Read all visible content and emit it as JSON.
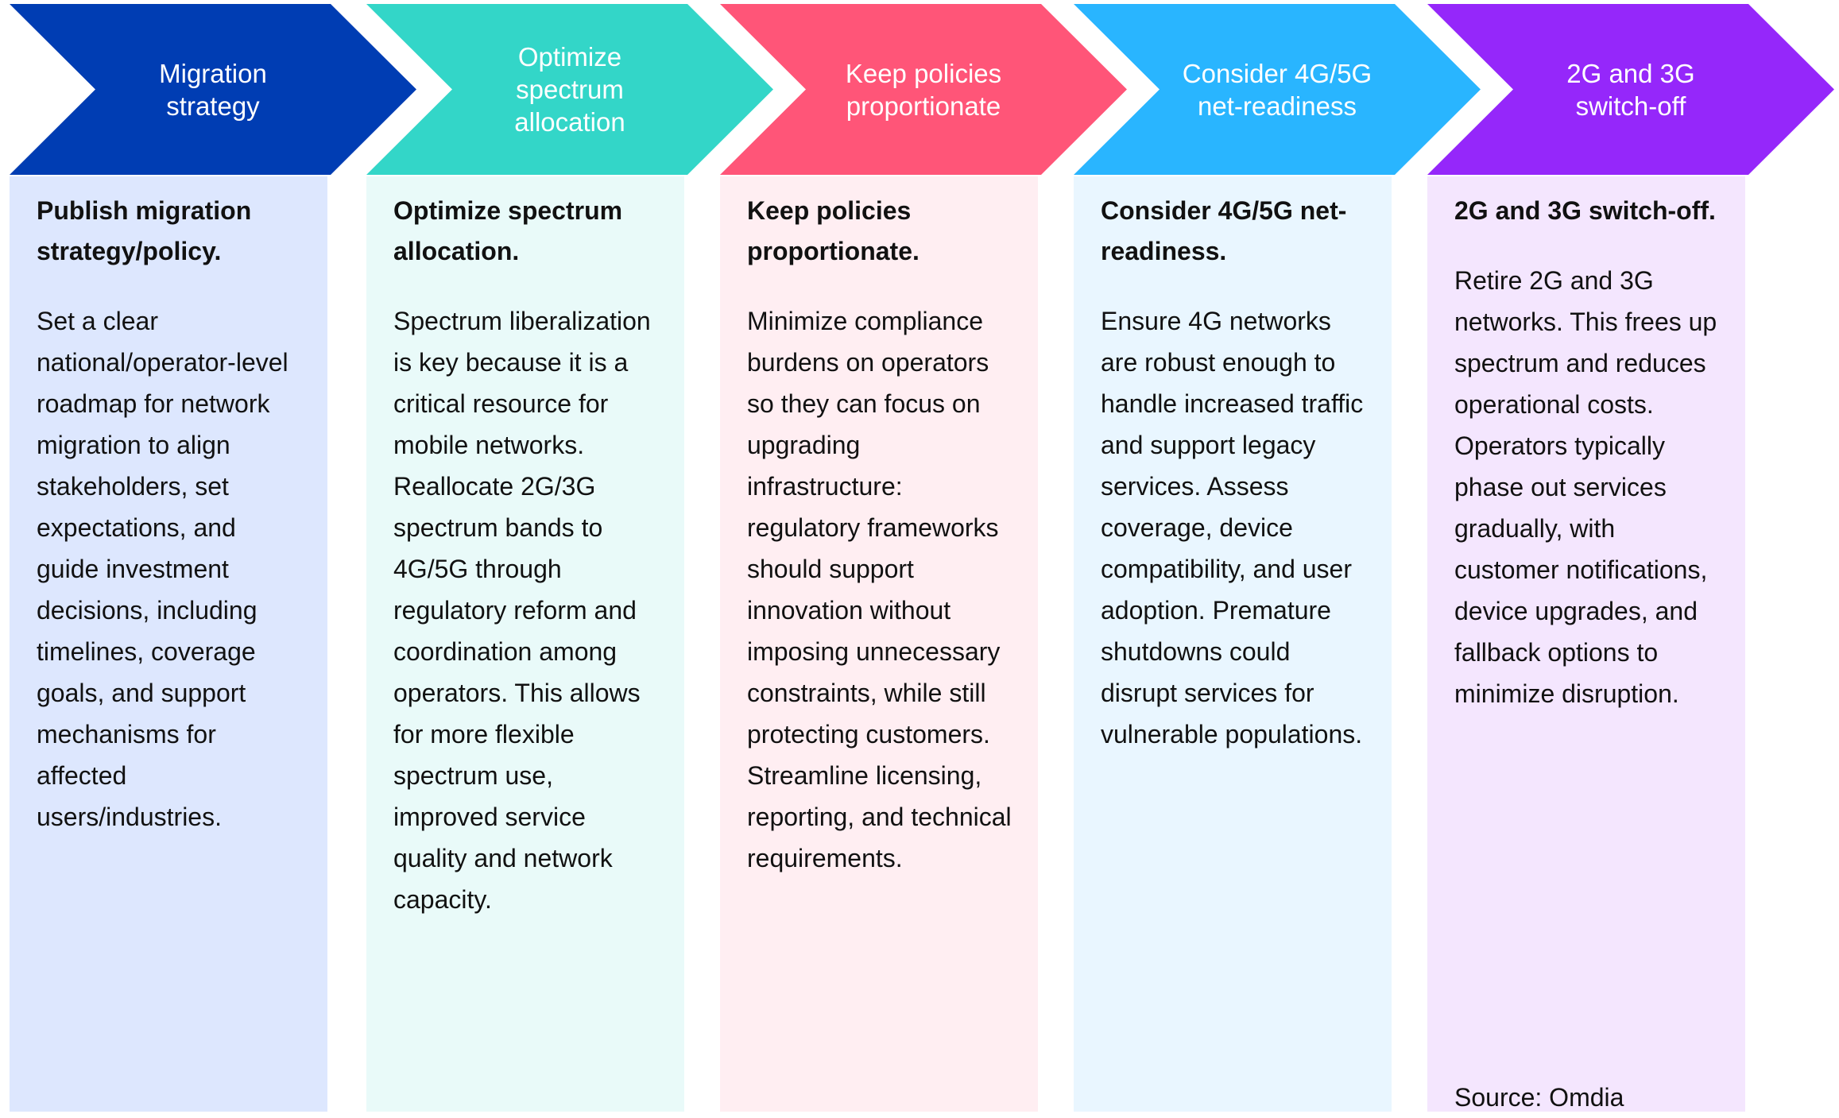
{
  "steps": [
    {
      "header": "Migration\nstrategy",
      "title": "Publish migration strategy/policy.",
      "body": "Set a clear national/operator-level roadmap for network migration to align stakeholders, set expectations, and guide investment decisions, including timelines, coverage goals, and support mechanisms for affected users/industries.",
      "color": "#003DB3",
      "bg": "#DDE7FE"
    },
    {
      "header": "Optimize\nspectrum\nallocation",
      "title": "Optimize spectrum allocation.",
      "body": "Spectrum liberalization is key because it is a critical resource for mobile networks. Reallocate 2G/3G spectrum bands to 4G/5G through regulatory reform and coordination among operators. This allows for more flexible spectrum use, improved service quality and network capacity.",
      "color": "#33D6C8",
      "bg": "#E9FAF9"
    },
    {
      "header": "Keep policies\nproportionate",
      "title": "Keep policies proportionate.",
      "body": "Minimize compliance burdens on operators so they can focus on upgrading infrastructure: regulatory frameworks should support innovation without imposing unnecessary constraints, while still protecting customers. Streamline licensing, reporting, and technical requirements.",
      "color": "#FF5578",
      "bg": "#FFEEF2"
    },
    {
      "header": "Consider 4G/5G\nnet-readiness",
      "title": "Consider 4G/5G net-readiness.",
      "body": "Ensure 4G networks are robust enough to handle increased traffic and support legacy services. Assess coverage, device compatibility, and user adoption. Premature shutdowns could disrupt services for vulnerable populations.",
      "color": "#29B5FF",
      "bg": "#E9F6FF"
    },
    {
      "header": "2G and 3G\nswitch-off",
      "title": "2G and 3G switch-off.",
      "body": "Retire 2G and 3G networks. This frees up spectrum and reduces operational costs. Operators typically phase out services gradually, with customer notifications, device upgrades, and fallback options to minimize disruption.",
      "color": "#9527FA",
      "bg": "#F4E6FE"
    }
  ],
  "source": "Source: Omdia"
}
